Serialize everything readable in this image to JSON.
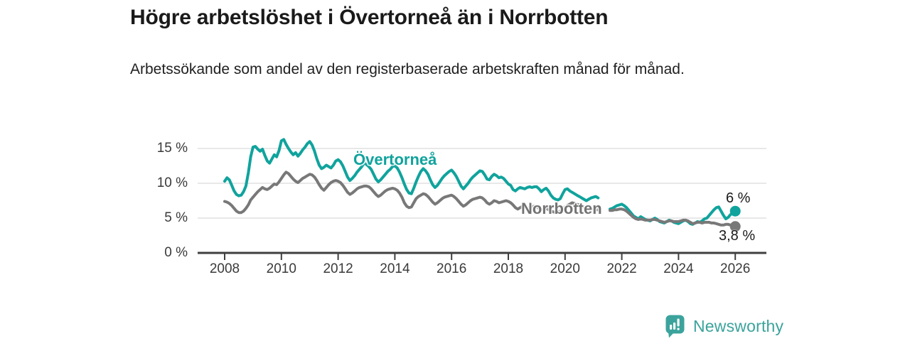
{
  "title": "Högre arbetslöshet i Övertorneå än i Norrbotten",
  "subtitle": "Arbetssökande som andel av den registerbaserade arbetskraften månad för månad.",
  "brand": {
    "name": "Newsworthy",
    "color": "#3ba39c"
  },
  "chart_data": {
    "type": "line",
    "unit": "%",
    "x_start": "2008-01",
    "x_end": "2026-01",
    "x_interval": "monthly",
    "x_ticks": [
      "2008",
      "2010",
      "2012",
      "2014",
      "2016",
      "2018",
      "2020",
      "2022",
      "2024",
      "2026"
    ],
    "y_ticks": [
      {
        "label": "0 %",
        "value": 0
      },
      {
        "label": "5 %",
        "value": 5
      },
      {
        "label": "10 %",
        "value": 10
      },
      {
        "label": "15 %",
        "value": 15
      }
    ],
    "ylim": [
      0,
      17.5
    ],
    "grid": "horizontal",
    "legend_position": "inline-labels",
    "series": [
      {
        "name": "Övertorneå",
        "color": "#10a39d",
        "end_label": "6 %",
        "values": [
          10.3,
          10.8,
          10.5,
          9.7,
          8.9,
          8.4,
          8.2,
          8.3,
          8.8,
          9.6,
          11.5,
          13.8,
          15.2,
          15.3,
          14.9,
          14.6,
          14.9,
          14.0,
          13.2,
          12.9,
          13.5,
          14.1,
          13.8,
          14.7,
          16.1,
          16.3,
          15.6,
          15.0,
          14.5,
          14.1,
          14.4,
          13.9,
          14.3,
          14.8,
          15.2,
          15.7,
          16.0,
          15.5,
          14.6,
          13.5,
          12.6,
          12.1,
          12.3,
          12.6,
          12.4,
          12.2,
          12.6,
          13.2,
          13.4,
          13.1,
          12.5,
          11.7,
          10.9,
          10.4,
          10.7,
          11.1,
          11.6,
          12.0,
          12.4,
          12.9,
          12.7,
          12.4,
          12.0,
          11.3,
          10.6,
          10.2,
          10.5,
          10.9,
          11.3,
          11.7,
          12.0,
          12.4,
          12.5,
          12.2,
          11.6,
          10.8,
          9.9,
          9.1,
          8.6,
          8.5,
          9.3,
          10.2,
          11.0,
          11.7,
          12.1,
          11.8,
          11.3,
          10.5,
          9.8,
          9.4,
          9.7,
          10.2,
          10.7,
          11.1,
          11.4,
          11.7,
          11.9,
          11.5,
          11.0,
          10.3,
          9.6,
          9.2,
          9.6,
          10.0,
          10.5,
          10.9,
          11.2,
          11.5,
          11.8,
          11.7,
          11.2,
          10.6,
          10.5,
          11.0,
          11.3,
          11.1,
          10.8,
          10.9,
          10.7,
          10.3,
          9.9,
          9.7,
          9.1,
          8.9,
          9.2,
          9.4,
          9.3,
          9.2,
          9.4,
          9.5,
          9.4,
          9.5,
          9.5,
          9.2,
          8.8,
          9.1,
          9.3,
          8.9,
          8.3,
          7.9,
          7.7,
          7.6,
          7.8,
          8.5,
          9.1,
          9.2,
          8.9,
          8.7,
          8.5,
          8.3,
          8.1,
          7.9,
          7.7,
          7.5,
          7.7,
          7.9,
          8.0,
          8.1,
          7.9,
          null,
          null,
          null,
          null,
          6.3,
          6.4,
          6.6,
          6.8,
          6.9,
          7.0,
          6.8,
          6.5,
          6.1,
          5.7,
          5.3,
          5.1,
          4.9,
          5.2,
          5.0,
          4.8,
          4.7,
          4.6,
          4.8,
          5.0,
          4.8,
          4.5,
          4.4,
          4.3,
          4.5,
          4.7,
          4.6,
          4.4,
          4.3,
          4.2,
          4.4,
          4.6,
          4.7,
          4.5,
          4.2,
          4.1,
          4.3,
          4.5,
          4.4,
          4.6,
          4.9,
          5.0,
          5.4,
          5.8,
          6.2,
          6.5,
          6.6,
          6.0,
          5.4,
          4.9,
          5.1,
          5.5,
          5.8,
          6.0
        ]
      },
      {
        "name": "Norrbotten",
        "color": "#787878",
        "end_label": "3,8 %",
        "values": [
          7.4,
          7.3,
          7.1,
          6.8,
          6.4,
          6.0,
          5.8,
          5.8,
          6.0,
          6.4,
          6.9,
          7.6,
          8.0,
          8.4,
          8.8,
          9.1,
          9.4,
          9.2,
          9.1,
          9.3,
          9.6,
          9.9,
          9.8,
          10.2,
          10.7,
          11.2,
          11.6,
          11.4,
          11.0,
          10.6,
          10.3,
          10.1,
          10.4,
          10.7,
          10.9,
          11.1,
          11.3,
          11.2,
          10.9,
          10.4,
          9.8,
          9.3,
          9.0,
          9.4,
          9.8,
          10.1,
          10.3,
          10.4,
          10.3,
          10.1,
          9.7,
          9.2,
          8.7,
          8.4,
          8.6,
          8.9,
          9.2,
          9.4,
          9.5,
          9.6,
          9.6,
          9.5,
          9.2,
          8.8,
          8.4,
          8.1,
          8.3,
          8.6,
          8.9,
          9.1,
          9.2,
          9.3,
          9.2,
          9.0,
          8.6,
          8.0,
          7.2,
          6.7,
          6.5,
          6.6,
          7.2,
          7.8,
          8.1,
          8.3,
          8.5,
          8.4,
          8.1,
          7.7,
          7.3,
          7.0,
          7.2,
          7.5,
          7.8,
          8.0,
          8.1,
          8.2,
          8.3,
          8.1,
          7.8,
          7.4,
          7.0,
          6.7,
          6.9,
          7.2,
          7.5,
          7.7,
          7.8,
          7.9,
          8.0,
          7.9,
          7.6,
          7.2,
          7.0,
          7.2,
          7.5,
          7.4,
          7.2,
          7.3,
          7.4,
          7.5,
          7.4,
          7.2,
          6.9,
          6.5,
          6.3,
          6.5,
          6.7,
          6.6,
          6.4,
          6.5,
          6.6,
          6.7,
          6.6,
          6.4,
          6.2,
          6.3,
          6.4,
          6.2,
          6.0,
          5.9,
          5.8,
          5.9,
          6.0,
          6.3,
          6.6,
          6.8,
          7.0,
          7.2,
          7.1,
          7.0,
          6.9,
          6.8,
          6.6,
          6.5,
          6.4,
          6.3,
          6.3,
          6.2,
          6.2,
          null,
          null,
          null,
          null,
          6.1,
          6.1,
          6.2,
          6.2,
          6.3,
          6.3,
          6.2,
          6.0,
          5.7,
          5.4,
          5.1,
          4.9,
          4.8,
          4.9,
          4.8,
          4.7,
          4.7,
          4.7,
          4.8,
          4.8,
          4.7,
          4.6,
          4.5,
          4.4,
          4.5,
          4.6,
          4.6,
          4.5,
          4.5,
          4.5,
          4.6,
          4.7,
          4.7,
          4.6,
          4.4,
          4.2,
          4.3,
          4.4,
          4.4,
          4.3,
          4.4,
          4.4,
          4.4,
          4.3,
          4.3,
          4.2,
          4.1,
          4.0,
          4.0,
          4.1,
          4.1,
          4.0,
          3.9,
          3.8
        ]
      }
    ]
  }
}
